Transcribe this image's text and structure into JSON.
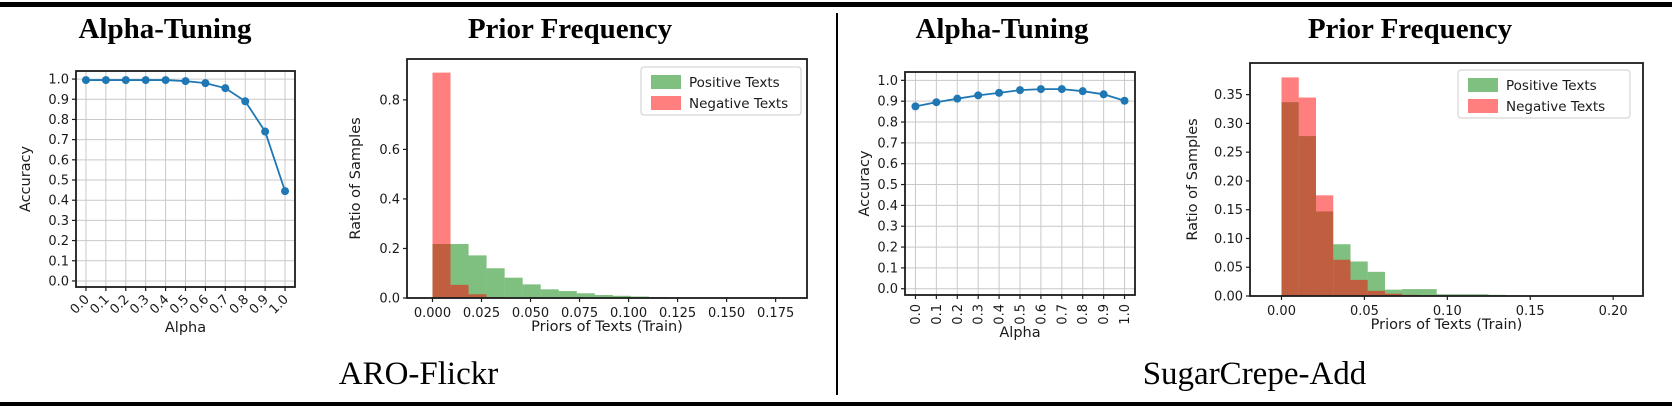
{
  "figure": {
    "panels": [
      {
        "dataset_label": "ARO-Flickr"
      },
      {
        "dataset_label": "SugarCrepe-Add"
      }
    ]
  },
  "chart_data": [
    {
      "panel": "ARO-Flickr",
      "type": "line",
      "title": "Alpha-Tuning",
      "xlabel": "Alpha",
      "ylabel": "Accuracy",
      "x": [
        0.0,
        0.1,
        0.2,
        0.3,
        0.4,
        0.5,
        0.6,
        0.7,
        0.8,
        0.9,
        1.0
      ],
      "x_tick_labels": [
        "0.0",
        "0.1",
        "0.2",
        "0.3",
        "0.4",
        "0.5",
        "0.6",
        "0.7",
        "0.8",
        "0.9",
        "1.0"
      ],
      "x_tick_rotation": -45,
      "values": [
        0.995,
        0.995,
        0.995,
        0.995,
        0.995,
        0.99,
        0.98,
        0.955,
        0.89,
        0.74,
        0.445
      ],
      "y_ticks": [
        0.0,
        0.1,
        0.2,
        0.3,
        0.4,
        0.5,
        0.6,
        0.7,
        0.8,
        0.9,
        1.0
      ],
      "y_tick_labels": [
        "0.0",
        "0.1",
        "0.2",
        "0.3",
        "0.4",
        "0.5",
        "0.6",
        "0.7",
        "0.8",
        "0.9",
        "1.0"
      ],
      "xlim": [
        -0.05,
        1.05
      ],
      "ylim": [
        -0.03,
        1.04
      ],
      "grid": true,
      "line_color": "#1f77b4"
    },
    {
      "panel": "ARO-Flickr",
      "type": "histogram",
      "title": "Prior Frequency",
      "xlabel": "Priors of Texts (Train)",
      "ylabel": "Ratio of Samples",
      "bin_start": 0.0,
      "bin_width": 0.0092,
      "fill_opacity": 0.5,
      "series": [
        {
          "name": "Positive Texts",
          "color": "#008000",
          "values": [
            0.218,
            0.218,
            0.172,
            0.12,
            0.082,
            0.055,
            0.035,
            0.028,
            0.019,
            0.012,
            0.009,
            0.006,
            0.004,
            0.002
          ]
        },
        {
          "name": "Negative Texts",
          "color": "#ff0000",
          "values": [
            0.91,
            0.053,
            0.015,
            0.004,
            0.002
          ]
        }
      ],
      "x_ticks": [
        0.0,
        0.025,
        0.05,
        0.075,
        0.1,
        0.125,
        0.15,
        0.175
      ],
      "x_tick_labels": [
        "0.000",
        "0.025",
        "0.050",
        "0.075",
        "0.100",
        "0.125",
        "0.150",
        "0.175"
      ],
      "y_ticks": [
        0.0,
        0.2,
        0.4,
        0.6,
        0.8
      ],
      "y_tick_labels": [
        "0.0",
        "0.2",
        "0.4",
        "0.6",
        "0.8"
      ],
      "xlim": [
        -0.013,
        0.191
      ],
      "ylim": [
        0,
        0.965
      ],
      "grid": false,
      "legend": {
        "labels": [
          "Positive Texts",
          "Negative Texts"
        ],
        "position": "upper right"
      }
    },
    {
      "panel": "SugarCrepe-Add",
      "type": "line",
      "title": "Alpha-Tuning",
      "xlabel": "Alpha",
      "ylabel": "Accuracy",
      "x": [
        0.0,
        0.1,
        0.2,
        0.3,
        0.4,
        0.5,
        0.6,
        0.7,
        0.8,
        0.9,
        1.0
      ],
      "x_tick_labels": [
        "0.0",
        "0.1",
        "0.2",
        "0.3",
        "0.4",
        "0.5",
        "0.6",
        "0.7",
        "0.8",
        "0.9",
        "1.0"
      ],
      "x_tick_rotation": -90,
      "values": [
        0.875,
        0.895,
        0.912,
        0.928,
        0.94,
        0.953,
        0.958,
        0.958,
        0.948,
        0.933,
        0.902
      ],
      "y_ticks": [
        0.0,
        0.1,
        0.2,
        0.3,
        0.4,
        0.5,
        0.6,
        0.7,
        0.8,
        0.9,
        1.0
      ],
      "y_tick_labels": [
        "0.0",
        "0.1",
        "0.2",
        "0.3",
        "0.4",
        "0.5",
        "0.6",
        "0.7",
        "0.8",
        "0.9",
        "1.0"
      ],
      "xlim": [
        -0.05,
        1.05
      ],
      "ylim": [
        -0.03,
        1.04
      ],
      "grid": true,
      "line_color": "#1f77b4"
    },
    {
      "panel": "SugarCrepe-Add",
      "type": "histogram",
      "title": "Prior Frequency",
      "xlabel": "Priors of Texts (Train)",
      "ylabel": "Ratio of Samples",
      "bin_start": 0.0,
      "bin_width": 0.0104,
      "fill_opacity": 0.5,
      "series": [
        {
          "name": "Positive Texts",
          "color": "#008000",
          "values": [
            0.337,
            0.278,
            0.147,
            0.09,
            0.06,
            0.042,
            0.011,
            0.012,
            0.012,
            0.003,
            0.003,
            0.003,
            0.002,
            0.001
          ]
        },
        {
          "name": "Negative Texts",
          "color": "#ff0000",
          "values": [
            0.38,
            0.345,
            0.175,
            0.063,
            0.028,
            0.009,
            0.004,
            0.002,
            0.001
          ]
        }
      ],
      "x_ticks": [
        0.0,
        0.05,
        0.1,
        0.15,
        0.2
      ],
      "x_tick_labels": [
        "0.00",
        "0.05",
        "0.10",
        "0.15",
        "0.20"
      ],
      "y_ticks": [
        0.0,
        0.05,
        0.1,
        0.15,
        0.2,
        0.25,
        0.3,
        0.35
      ],
      "y_tick_labels": [
        "0.00",
        "0.05",
        "0.10",
        "0.15",
        "0.20",
        "0.25",
        "0.30",
        "0.35"
      ],
      "xlim": [
        -0.019,
        0.218
      ],
      "ylim": [
        0,
        0.405
      ],
      "grid": false,
      "legend": {
        "labels": [
          "Positive Texts",
          "Negative Texts"
        ],
        "position": "upper right"
      }
    }
  ]
}
